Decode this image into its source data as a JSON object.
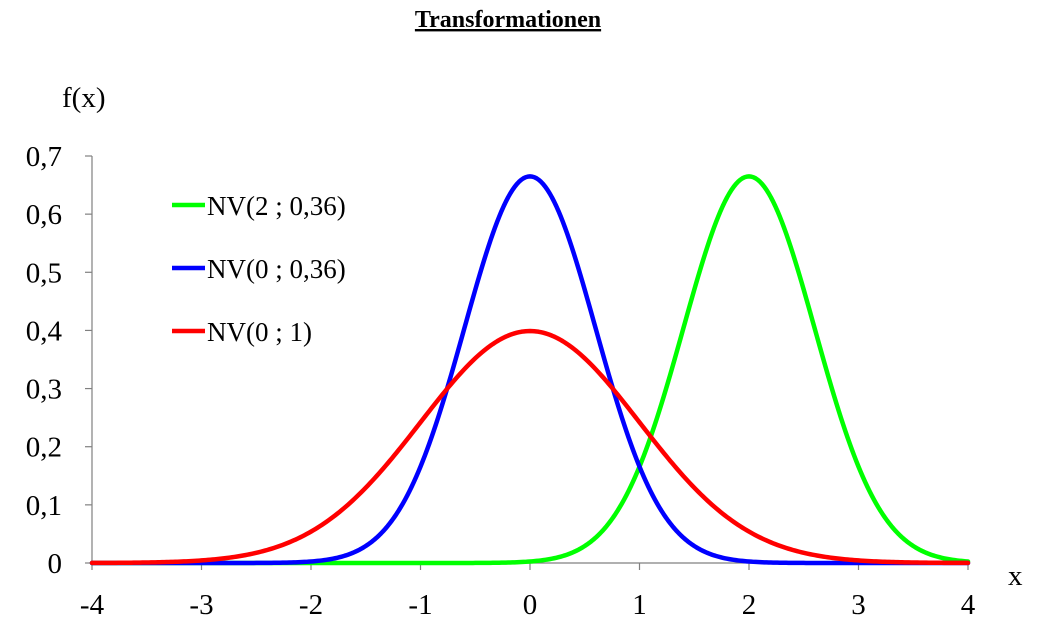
{
  "chart_data": {
    "type": "line",
    "title": "Transformationen",
    "xlabel": "x",
    "ylabel": "f(x)",
    "xlim": [
      -4,
      4
    ],
    "ylim": [
      0,
      0.7
    ],
    "xticks": [
      -4,
      -3,
      -2,
      -1,
      0,
      1,
      2,
      3,
      4
    ],
    "xtick_labels": [
      "-4",
      "-3",
      "-2",
      "-1",
      "0",
      "1",
      "2",
      "3",
      "4"
    ],
    "yticks": [
      0,
      0.1,
      0.2,
      0.3,
      0.4,
      0.5,
      0.6,
      0.7
    ],
    "ytick_labels": [
      "0",
      "0,1",
      "0,2",
      "0,3",
      "0,4",
      "0,5",
      "0,6",
      "0,7"
    ],
    "grid": false,
    "legend_position": "top-left",
    "series": [
      {
        "name": "NV(2 ; 0,36)",
        "color": "#00ff00",
        "distribution": "normal",
        "mean": 2,
        "variance": 0.36,
        "peak": 0.665
      },
      {
        "name": "NV(0 ; 0,36)",
        "color": "#0000ff",
        "distribution": "normal",
        "mean": 0,
        "variance": 0.36,
        "peak": 0.665
      },
      {
        "name": "NV(0 ; 1)",
        "color": "#ff0000",
        "distribution": "normal",
        "mean": 0,
        "variance": 1,
        "peak": 0.399
      }
    ]
  }
}
